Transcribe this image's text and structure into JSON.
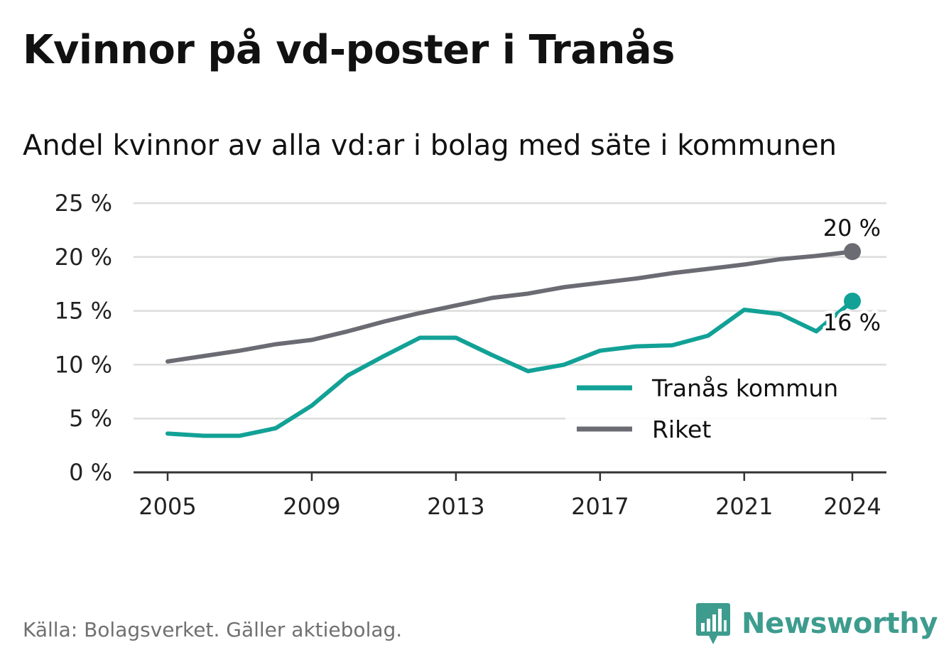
{
  "header": {
    "title": "Kvinnor på vd-poster i Tranås",
    "subtitle": "Andel kvinnor av alla vd:ar i bolag med säte i kommunen"
  },
  "footer": {
    "source": "Källa: Bolagsverket. Gäller aktiebolag.",
    "brand": "Newsworthy",
    "brand_icon": "bar-chart-speech-bubble-icon"
  },
  "colors": {
    "tranas": "#12a196",
    "riket": "#6b6b73",
    "grid": "#dcdcdc",
    "axis": "#333333",
    "brand": "#3d9c8e"
  },
  "chart_data": {
    "type": "line",
    "x": [
      2005,
      2006,
      2007,
      2008,
      2009,
      2010,
      2011,
      2012,
      2013,
      2014,
      2015,
      2016,
      2017,
      2018,
      2019,
      2020,
      2021,
      2022,
      2023,
      2024
    ],
    "series": [
      {
        "name": "Tranås kommun",
        "key": "tranas",
        "values": [
          3.6,
          3.4,
          3.4,
          4.1,
          6.2,
          9.0,
          10.8,
          12.5,
          12.5,
          10.9,
          9.4,
          10.0,
          11.3,
          11.7,
          11.8,
          12.7,
          15.1,
          14.7,
          13.1,
          15.9
        ],
        "end_label": "16 %"
      },
      {
        "name": "Riket",
        "key": "riket",
        "values": [
          10.3,
          10.8,
          11.3,
          11.9,
          12.3,
          13.1,
          14.0,
          14.8,
          15.5,
          16.2,
          16.6,
          17.2,
          17.6,
          18.0,
          18.5,
          18.9,
          19.3,
          19.8,
          20.1,
          20.5
        ],
        "end_label": "20 %"
      }
    ],
    "ylim": [
      0,
      25
    ],
    "yticks": [
      0,
      5,
      10,
      15,
      20,
      25
    ],
    "ytick_labels": [
      "0 %",
      "5 %",
      "10 %",
      "15 %",
      "20 %",
      "25 %"
    ],
    "xticks": [
      2005,
      2009,
      2013,
      2017,
      2021,
      2024
    ],
    "xtick_labels": [
      "2005",
      "2009",
      "2013",
      "2017",
      "2021",
      "2024"
    ],
    "title": "Kvinnor på vd-poster i Tranås",
    "subtitle": "Andel kvinnor av alla vd:ar i bolag med säte i kommunen",
    "xlabel": "",
    "ylabel": "",
    "grid": true,
    "legend": "bottom-right",
    "legend_entries": [
      "Tranås kommun",
      "Riket"
    ]
  }
}
